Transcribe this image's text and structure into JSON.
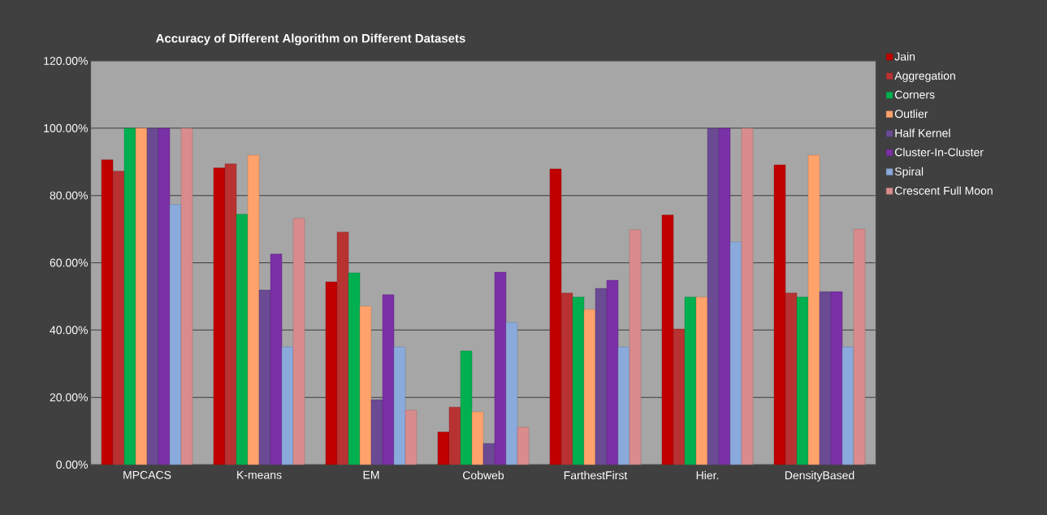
{
  "chart_data": {
    "type": "bar",
    "title": "Accuracy of Different Algorithm on Different Datasets",
    "categories": [
      "MPCACS",
      "K-means",
      "EM",
      "Cobweb",
      "FarthestFirst",
      "Hier.",
      "DensityBased"
    ],
    "series": [
      {
        "name": "Jain",
        "color": "#c00000",
        "values": [
          90.6,
          88.2,
          54.3,
          9.7,
          87.9,
          74.2,
          89.1
        ]
      },
      {
        "name": "Aggregation",
        "color": "#b83232",
        "values": [
          87.2,
          89.4,
          69.1,
          17.1,
          51,
          40.3,
          51
        ]
      },
      {
        "name": "Corners",
        "color": "#00b050",
        "values": [
          100,
          74.4,
          57,
          33.8,
          49.8,
          49.8,
          49.8
        ]
      },
      {
        "name": "Outlier",
        "color": "#ffa26b",
        "values": [
          100,
          92,
          47.1,
          15.7,
          46.1,
          49.8,
          92
        ]
      },
      {
        "name": "Half Kernel",
        "color": "#6b4a94",
        "values": [
          100,
          51.9,
          19.3,
          6.3,
          52.4,
          100,
          51.4
        ]
      },
      {
        "name": "Cluster-In-Cluster",
        "color": "#7a30a6",
        "values": [
          100,
          62.6,
          50.5,
          57.2,
          54.8,
          100,
          51.4
        ]
      },
      {
        "name": "Spiral",
        "color": "#8aaadb",
        "values": [
          77.3,
          35,
          35,
          42.3,
          35,
          66.2,
          35
        ]
      },
      {
        "name": "Crescent Full Moon",
        "color": "#d98c8c",
        "values": [
          100,
          73.2,
          16.2,
          11.1,
          69.8,
          100,
          70
        ]
      }
    ],
    "ylim": [
      0,
      120
    ],
    "yticks": [
      {
        "value": 0,
        "label": "0.00%"
      },
      {
        "value": 20,
        "label": "20.00%"
      },
      {
        "value": 40,
        "label": "40.00%"
      },
      {
        "value": 60,
        "label": "60.00%"
      },
      {
        "value": 80,
        "label": "80.00%"
      },
      {
        "value": 100,
        "label": "100.00%"
      },
      {
        "value": 120,
        "label": "120.00%"
      }
    ],
    "grid": "y",
    "legend": "right"
  }
}
